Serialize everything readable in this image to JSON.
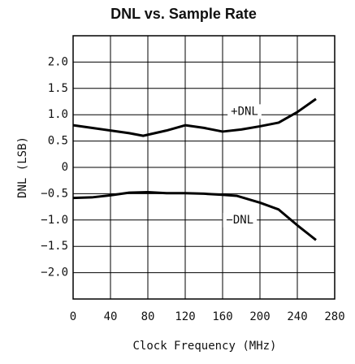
{
  "chart_data": {
    "type": "line",
    "title": "DNL vs. Sample Rate",
    "x_label": "Clock Frequency (MHz)",
    "y_label": "DNL (LSB)",
    "xlim": [
      0,
      280
    ],
    "xticks": [
      0,
      40,
      80,
      120,
      160,
      200,
      240,
      280
    ],
    "ylim": [
      -2.5,
      2.5
    ],
    "yticks": [
      {
        "value": -2,
        "label": "−2.0"
      },
      {
        "value": -1.5,
        "label": "−1.5"
      },
      {
        "value": -1,
        "label": "−1.0"
      },
      {
        "value": -0.5,
        "label": "−0.5"
      },
      0,
      0.5,
      {
        "value": 1,
        "label": "1.0"
      },
      1.5,
      {
        "value": 2,
        "label": "2.0"
      }
    ],
    "grid": true,
    "series": [
      {
        "name": "+DNL",
        "color": "#000000",
        "x": [
          0,
          20,
          40,
          60,
          75,
          100,
          120,
          140,
          160,
          180,
          200,
          220,
          240,
          260
        ],
        "values": [
          0.8,
          0.75,
          0.7,
          0.65,
          0.6,
          0.7,
          0.8,
          0.75,
          0.68,
          0.72,
          0.78,
          0.85,
          1.05,
          1.3
        ]
      },
      {
        "name": "−DNL",
        "color": "#000000",
        "x": [
          0,
          20,
          40,
          60,
          80,
          100,
          120,
          140,
          160,
          175,
          200,
          220,
          240,
          260
        ],
        "values": [
          -0.58,
          -0.57,
          -0.53,
          -0.48,
          -0.47,
          -0.49,
          -0.49,
          -0.5,
          -0.52,
          -0.54,
          -0.67,
          -0.8,
          -1.1,
          -1.38
        ]
      }
    ]
  }
}
